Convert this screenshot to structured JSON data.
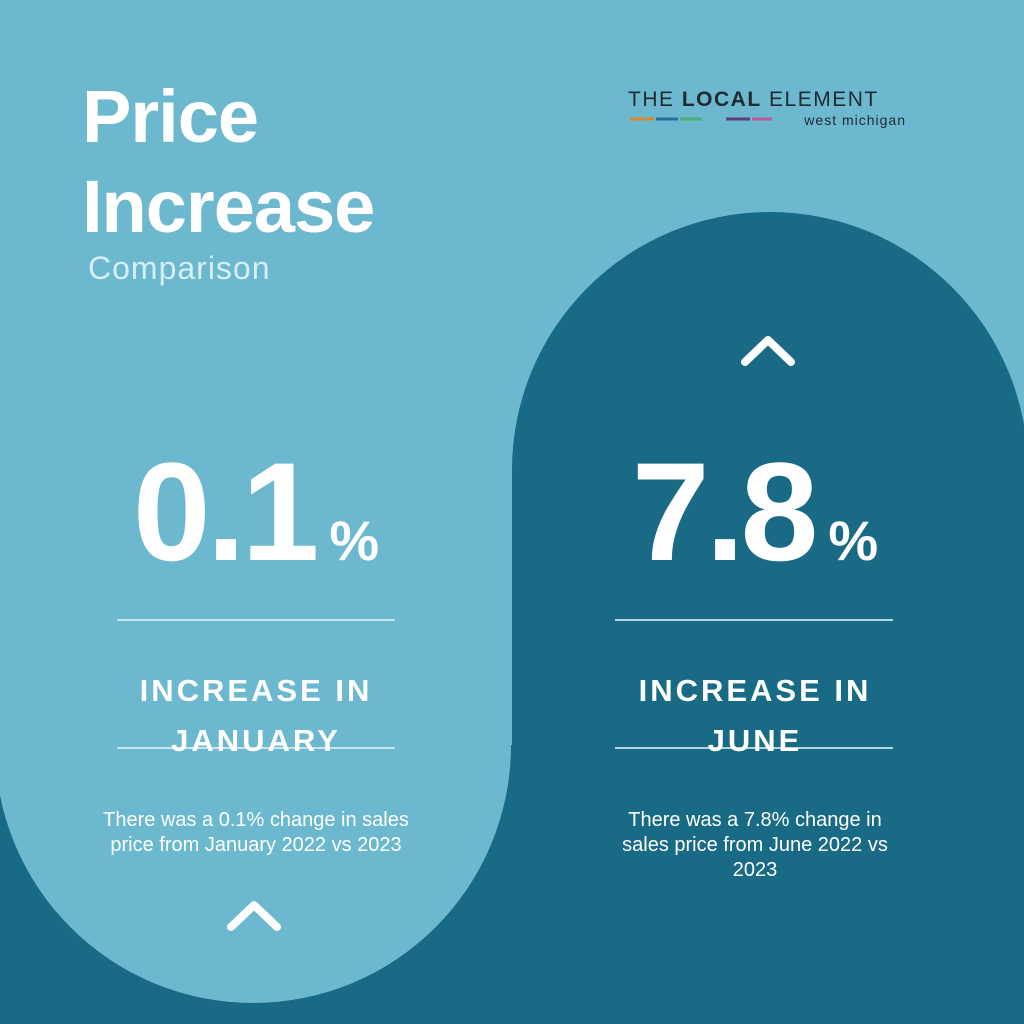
{
  "header": {
    "title": "Price Increase",
    "subtitle": "Comparison"
  },
  "brand": {
    "word1": "THE",
    "word2": "LOCAL",
    "word3": "ELEMENT",
    "tagline": "west michigan"
  },
  "stats": [
    {
      "value": 0.1,
      "unit": "%",
      "label": "INCREASE IN JANUARY",
      "description": "There was a 0.1% change in sales price from January 2022 vs 2023"
    },
    {
      "value": 7.8,
      "unit": "%",
      "label": "INCREASE IN JUNE",
      "description": "There was a 7.8% change in sales price from June 2022 vs 2023"
    }
  ]
}
